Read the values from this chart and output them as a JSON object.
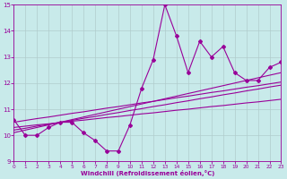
{
  "xlabel": "Windchill (Refroidissement éolien,°C)",
  "bg_color": "#c8eaea",
  "line_color": "#990099",
  "grid_color": "#b0cccc",
  "x_data": [
    0,
    1,
    2,
    3,
    4,
    5,
    6,
    7,
    8,
    9,
    10,
    11,
    12,
    13,
    14,
    15,
    16,
    17,
    18,
    19,
    20,
    21,
    22,
    23
  ],
  "y_main": [
    10.6,
    10.0,
    10.0,
    10.3,
    10.5,
    10.5,
    10.1,
    9.8,
    9.4,
    9.4,
    10.4,
    11.8,
    12.9,
    15.0,
    13.8,
    12.4,
    13.6,
    13.0,
    13.4,
    12.4,
    12.1,
    12.1,
    12.6,
    12.8
  ],
  "trend_lines": [
    [
      10.3,
      10.35,
      10.4,
      10.44,
      10.49,
      10.54,
      10.58,
      10.63,
      10.68,
      10.72,
      10.77,
      10.82,
      10.86,
      10.91,
      10.96,
      11.0,
      11.05,
      11.1,
      11.14,
      11.19,
      11.24,
      11.28,
      11.33,
      11.38
    ],
    [
      10.2,
      10.27,
      10.35,
      10.42,
      10.5,
      10.57,
      10.65,
      10.72,
      10.8,
      10.87,
      10.95,
      11.02,
      11.1,
      11.17,
      11.25,
      11.32,
      11.4,
      11.47,
      11.55,
      11.62,
      11.7,
      11.77,
      11.85,
      11.92
    ],
    [
      10.1,
      10.2,
      10.3,
      10.4,
      10.5,
      10.6,
      10.7,
      10.8,
      10.9,
      11.0,
      11.1,
      11.2,
      11.3,
      11.4,
      11.5,
      11.6,
      11.7,
      11.8,
      11.9,
      12.0,
      12.1,
      12.2,
      12.3,
      12.4
    ],
    [
      10.5,
      10.57,
      10.64,
      10.7,
      10.77,
      10.84,
      10.9,
      10.97,
      11.04,
      11.1,
      11.17,
      11.24,
      11.3,
      11.37,
      11.44,
      11.5,
      11.57,
      11.64,
      11.7,
      11.77,
      11.84,
      11.9,
      11.97,
      12.04
    ]
  ],
  "xlim": [
    0,
    23
  ],
  "ylim": [
    9,
    15
  ],
  "yticks": [
    9,
    10,
    11,
    12,
    13,
    14,
    15
  ],
  "xticks": [
    0,
    1,
    2,
    3,
    4,
    5,
    6,
    7,
    8,
    9,
    10,
    11,
    12,
    13,
    14,
    15,
    16,
    17,
    18,
    19,
    20,
    21,
    22,
    23
  ]
}
